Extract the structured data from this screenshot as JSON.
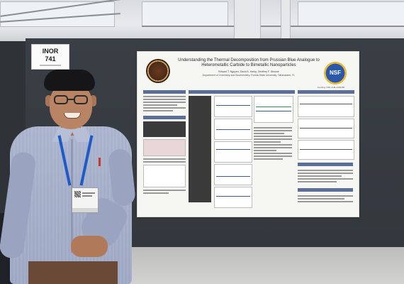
{
  "booth_sign": {
    "line1": "INOR",
    "line2": "741"
  },
  "poster": {
    "title": "Understanding the Thermal Decomposition from Prussian Blue Analogue to Heterometallic Carbide to Bimetallic Nanoparticles",
    "authors": "Edward T. Nguyen, David A. Hardy, Geoffrey F. Strouse",
    "department": "Department of Chemistry and Biochemistry, Florida State University, Tallahassee, FL",
    "left_logo": "fsu-seal",
    "right_logo_text": "NSF",
    "funding_note": "Funding: NSF CHE-1363455",
    "section_colors": {
      "header": "#5b6e9a",
      "plot_line": "#3c56a8"
    }
  },
  "scene": {
    "board_color": "#363b41",
    "shirt_color": "#a3accb",
    "lanyard_color": "#1f5bc4"
  }
}
